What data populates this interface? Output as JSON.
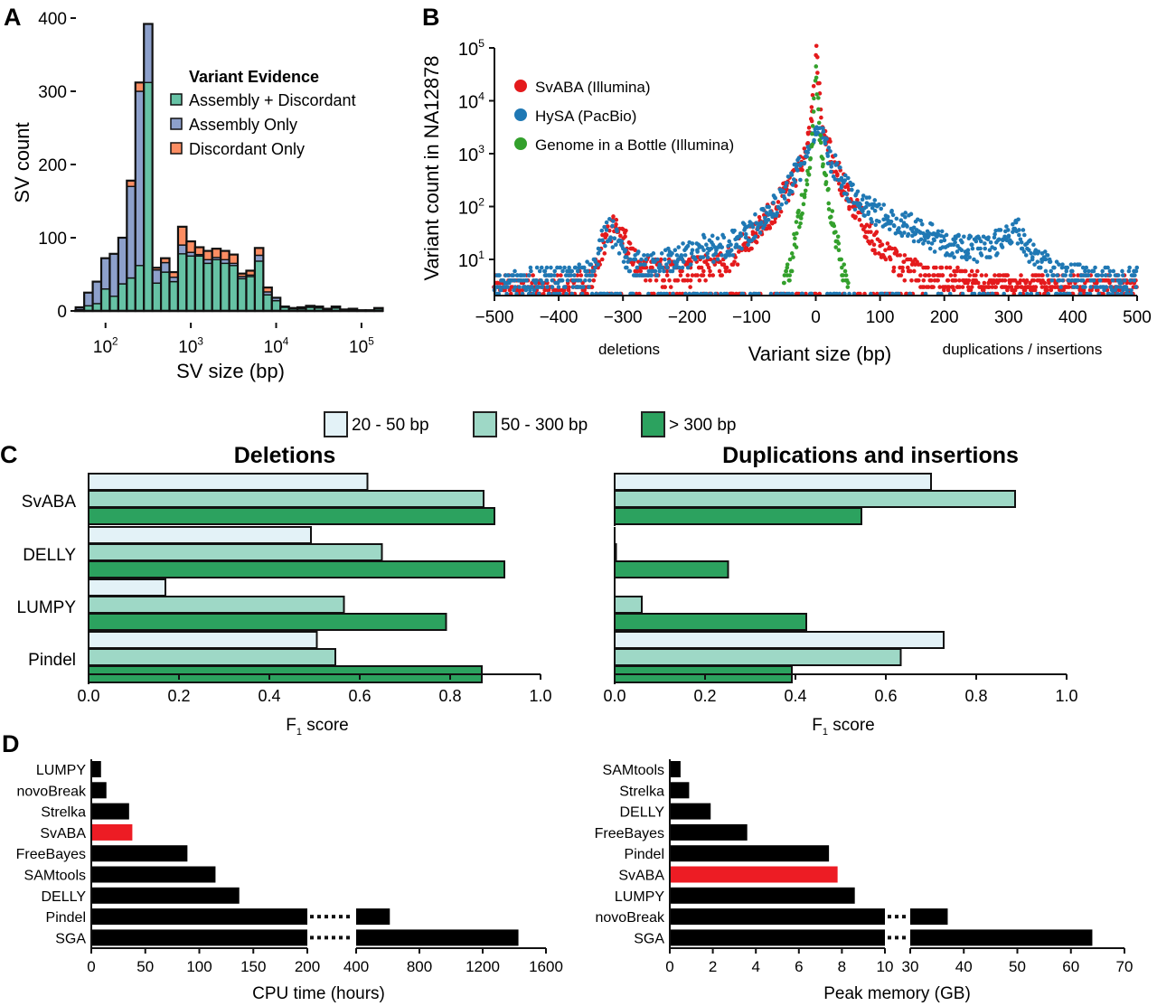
{
  "panels": {
    "A": "A",
    "B": "B",
    "C": "C",
    "D": "D"
  },
  "chart_data": [
    {
      "id": "A",
      "type": "bar",
      "stacked": true,
      "title": "",
      "xlabel": "SV size (bp)",
      "ylabel": "SV count",
      "xscale": "log",
      "xlim": [
        45,
        180000
      ],
      "ylim": [
        0,
        400
      ],
      "yticks": [
        0,
        100,
        200,
        300,
        400
      ],
      "xticks": [
        {
          "v": 100,
          "base": "10",
          "exp": "2"
        },
        {
          "v": 1000,
          "base": "10",
          "exp": "3"
        },
        {
          "v": 10000,
          "base": "10",
          "exp": "4"
        },
        {
          "v": 100000,
          "base": "10",
          "exp": "5"
        }
      ],
      "legend": {
        "title": "Variant Evidence",
        "position": "top-right"
      },
      "series": [
        {
          "name": "Assembly + Discordant",
          "color": "#66c2a5",
          "values": [
            2,
            7,
            10,
            30,
            20,
            37,
            45,
            62,
            312,
            38,
            53,
            40,
            78,
            75,
            75,
            65,
            70,
            65,
            62,
            44,
            47,
            68,
            22,
            14,
            5,
            3,
            3,
            5,
            4,
            2,
            4,
            1,
            2,
            1,
            1,
            3
          ]
        },
        {
          "name": "Assembly Only",
          "color": "#8da0cb",
          "values": [
            3,
            18,
            30,
            42,
            58,
            63,
            125,
            238,
            80,
            18,
            13,
            6,
            12,
            5,
            2,
            5,
            3,
            5,
            3,
            3,
            2,
            8,
            4,
            4,
            1,
            1,
            1,
            1,
            1,
            1,
            1,
            1,
            1,
            0,
            0,
            1
          ]
        },
        {
          "name": "Discordant Only",
          "color": "#fc8d62",
          "values": [
            0,
            0,
            0,
            0,
            0,
            0,
            8,
            12,
            0,
            3,
            6,
            7,
            25,
            15,
            10,
            12,
            12,
            12,
            12,
            4,
            6,
            10,
            6,
            0,
            0,
            0,
            1,
            1,
            1,
            0,
            1,
            0,
            0,
            0,
            0,
            0
          ]
        }
      ],
      "bin_edges_log10": [
        1.65,
        1.75,
        1.85,
        1.95,
        2.05,
        2.15,
        2.25,
        2.35,
        2.45,
        2.55,
        2.65,
        2.75,
        2.85,
        2.95,
        3.05,
        3.15,
        3.25,
        3.35,
        3.45,
        3.55,
        3.65,
        3.75,
        3.85,
        3.95,
        4.05,
        4.15,
        4.25,
        4.35,
        4.45,
        4.55,
        4.65,
        4.75,
        4.85,
        4.95,
        5.05,
        5.15,
        5.25
      ]
    },
    {
      "id": "B",
      "type": "scatter",
      "xlabel": "Variant size (bp)",
      "ylabel": "Variant count in NA12878",
      "xlim": [
        -500,
        500
      ],
      "xticks": [
        "−500",
        "−400",
        "−300",
        "−200",
        "−100",
        "0",
        "100",
        "200",
        "300",
        "400",
        "500"
      ],
      "xtick_values": [
        -500,
        -400,
        -300,
        -200,
        -100,
        0,
        100,
        200,
        300,
        400,
        500
      ],
      "yscale": "log",
      "ylim": [
        2,
        100000
      ],
      "yticks": [
        {
          "v": 10,
          "base": "10",
          "exp": "1"
        },
        {
          "v": 100,
          "base": "10",
          "exp": "2"
        },
        {
          "v": 1000,
          "base": "10",
          "exp": "3"
        },
        {
          "v": 10000,
          "base": "10",
          "exp": "4"
        },
        {
          "v": 100000,
          "base": "10",
          "exp": "5"
        }
      ],
      "annotations": {
        "left": "deletions",
        "right": "duplications / insertions"
      },
      "legend_position": "top-left",
      "series": [
        {
          "name": "SvABA (Illumina)",
          "color": "#e41a1c",
          "profile": [
            [
              -500,
              3
            ],
            [
              -450,
              3
            ],
            [
              -400,
              3
            ],
            [
              -350,
              4
            ],
            [
              -330,
              20
            ],
            [
              -310,
              55
            ],
            [
              -295,
              20
            ],
            [
              -280,
              8
            ],
            [
              -250,
              6
            ],
            [
              -200,
              6
            ],
            [
              -150,
              8
            ],
            [
              -120,
              15
            ],
            [
              -100,
              25
            ],
            [
              -80,
              50
            ],
            [
              -60,
              100
            ],
            [
              -40,
              250
            ],
            [
              -20,
              800
            ],
            [
              -10,
              2500
            ],
            [
              -5,
              8000
            ],
            [
              0,
              100000
            ],
            [
              5,
              20000
            ],
            [
              10,
              4000
            ],
            [
              20,
              1200
            ],
            [
              40,
              300
            ],
            [
              60,
              100
            ],
            [
              80,
              40
            ],
            [
              100,
              15
            ],
            [
              130,
              8
            ],
            [
              160,
              5
            ],
            [
              200,
              4
            ],
            [
              300,
              3
            ],
            [
              400,
              3
            ],
            [
              500,
              3
            ]
          ]
        },
        {
          "name": "HySA (PacBio)",
          "color": "#1f78b4",
          "profile": [
            [
              -500,
              3
            ],
            [
              -450,
              4
            ],
            [
              -400,
              4
            ],
            [
              -350,
              5
            ],
            [
              -330,
              30
            ],
            [
              -320,
              40
            ],
            [
              -300,
              12
            ],
            [
              -280,
              8
            ],
            [
              -250,
              8
            ],
            [
              -200,
              12
            ],
            [
              -170,
              18
            ],
            [
              -150,
              15
            ],
            [
              -120,
              25
            ],
            [
              -100,
              35
            ],
            [
              -80,
              60
            ],
            [
              -60,
              110
            ],
            [
              -40,
              250
            ],
            [
              -20,
              700
            ],
            [
              -5,
              2000
            ],
            [
              0,
              3000
            ],
            [
              10,
              2500
            ],
            [
              20,
              1000
            ],
            [
              40,
              300
            ],
            [
              60,
              150
            ],
            [
              80,
              100
            ],
            [
              100,
              70
            ],
            [
              150,
              40
            ],
            [
              200,
              20
            ],
            [
              250,
              15
            ],
            [
              300,
              25
            ],
            [
              315,
              35
            ],
            [
              340,
              10
            ],
            [
              400,
              5
            ],
            [
              450,
              4
            ],
            [
              500,
              4
            ]
          ]
        },
        {
          "name": "Genome in a Bottle (Illumina)",
          "color": "#33a02c",
          "profile": [
            [
              -50,
              3
            ],
            [
              -40,
              6
            ],
            [
              -30,
              30
            ],
            [
              -20,
              120
            ],
            [
              -10,
              600
            ],
            [
              -5,
              2000
            ],
            [
              0,
              50000
            ],
            [
              5,
              3000
            ],
            [
              10,
              700
            ],
            [
              20,
              150
            ],
            [
              30,
              30
            ],
            [
              40,
              6
            ],
            [
              50,
              3
            ]
          ]
        }
      ]
    },
    {
      "id": "C",
      "type": "bar",
      "orientation": "horizontal",
      "legend": {
        "position": "top-center",
        "items": [
          {
            "label": "20 - 50 bp",
            "color": "#e3f2f7"
          },
          {
            "label": "50 - 300 bp",
            "color": "#9ed8c6"
          },
          {
            "label": "> 300 bp",
            "color": "#2ca25f"
          }
        ]
      },
      "categories": [
        "SvABA",
        "DELLY",
        "LUMPY",
        "Pindel"
      ],
      "xlim": [
        0,
        1.0
      ],
      "xticks": [
        "0.0",
        "0.2",
        "0.4",
        "0.6",
        "0.8",
        "1.0"
      ],
      "xlabel_main": "F",
      "xlabel_sub": "1",
      "xlabel_rest": " score",
      "subplots": [
        {
          "title": "Deletions",
          "series": [
            {
              "name": "20 - 50 bp",
              "values": [
                0.617,
                0.492,
                0.17,
                0.505
              ]
            },
            {
              "name": "50 - 300 bp",
              "values": [
                0.874,
                0.649,
                0.565,
                0.546
              ]
            },
            {
              "name": "> 300 bp",
              "values": [
                0.898,
                0.92,
                0.791,
                0.87
              ]
            }
          ]
        },
        {
          "title": "Duplications and insertions",
          "series": [
            {
              "name": "20 - 50 bp",
              "values": [
                0.7,
                0.0,
                0.0,
                0.728
              ]
            },
            {
              "name": "50 - 300 bp",
              "values": [
                0.886,
                0.003,
                0.06,
                0.633
              ]
            },
            {
              "name": "> 300 bp",
              "values": [
                0.546,
                0.251,
                0.424,
                0.392
              ]
            }
          ]
        }
      ]
    },
    {
      "id": "D-left",
      "type": "bar",
      "orientation": "horizontal",
      "xlabel": "CPU time (hours)",
      "categories": [
        "LUMPY",
        "novoBreak",
        "Strelka",
        "SvABA",
        "FreeBayes",
        "SAMtools",
        "DELLY",
        "Pindel",
        "SGA"
      ],
      "values": [
        9,
        14,
        35,
        38,
        89,
        115,
        137,
        613,
        1426
      ],
      "highlight": "SvABA",
      "highlight_color": "#ed1c24",
      "bar_color": "#000000",
      "axis_break": {
        "lower": [
          0,
          200
        ],
        "upper": [
          400,
          1600
        ]
      },
      "xticks_lower": [
        "0",
        "50",
        "100",
        "150",
        "200"
      ],
      "xticks_lower_values": [
        0,
        50,
        100,
        150,
        200
      ],
      "xticks_upper": [
        "400",
        "800",
        "1200",
        "1600"
      ],
      "xticks_upper_values": [
        400,
        800,
        1200,
        1600
      ]
    },
    {
      "id": "D-right",
      "type": "bar",
      "orientation": "horizontal",
      "xlabel": "Peak memory (GB)",
      "categories": [
        "SAMtools",
        "Strelka",
        "DELLY",
        "FreeBayes",
        "Pindel",
        "SvABA",
        "LUMPY",
        "novoBreak",
        "SGA"
      ],
      "values": [
        0.5,
        0.9,
        1.9,
        3.6,
        7.4,
        7.8,
        8.6,
        37,
        64
      ],
      "highlight": "SvABA",
      "highlight_color": "#ed1c24",
      "bar_color": "#000000",
      "axis_break": {
        "lower": [
          0,
          10
        ],
        "upper": [
          30,
          70
        ]
      },
      "xticks_lower": [
        "0",
        "2",
        "4",
        "6",
        "8",
        "10"
      ],
      "xticks_lower_values": [
        0,
        2,
        4,
        6,
        8,
        10
      ],
      "xticks_upper": [
        "30",
        "40",
        "50",
        "60",
        "70"
      ],
      "xticks_upper_values": [
        30,
        40,
        50,
        60,
        70
      ]
    }
  ]
}
